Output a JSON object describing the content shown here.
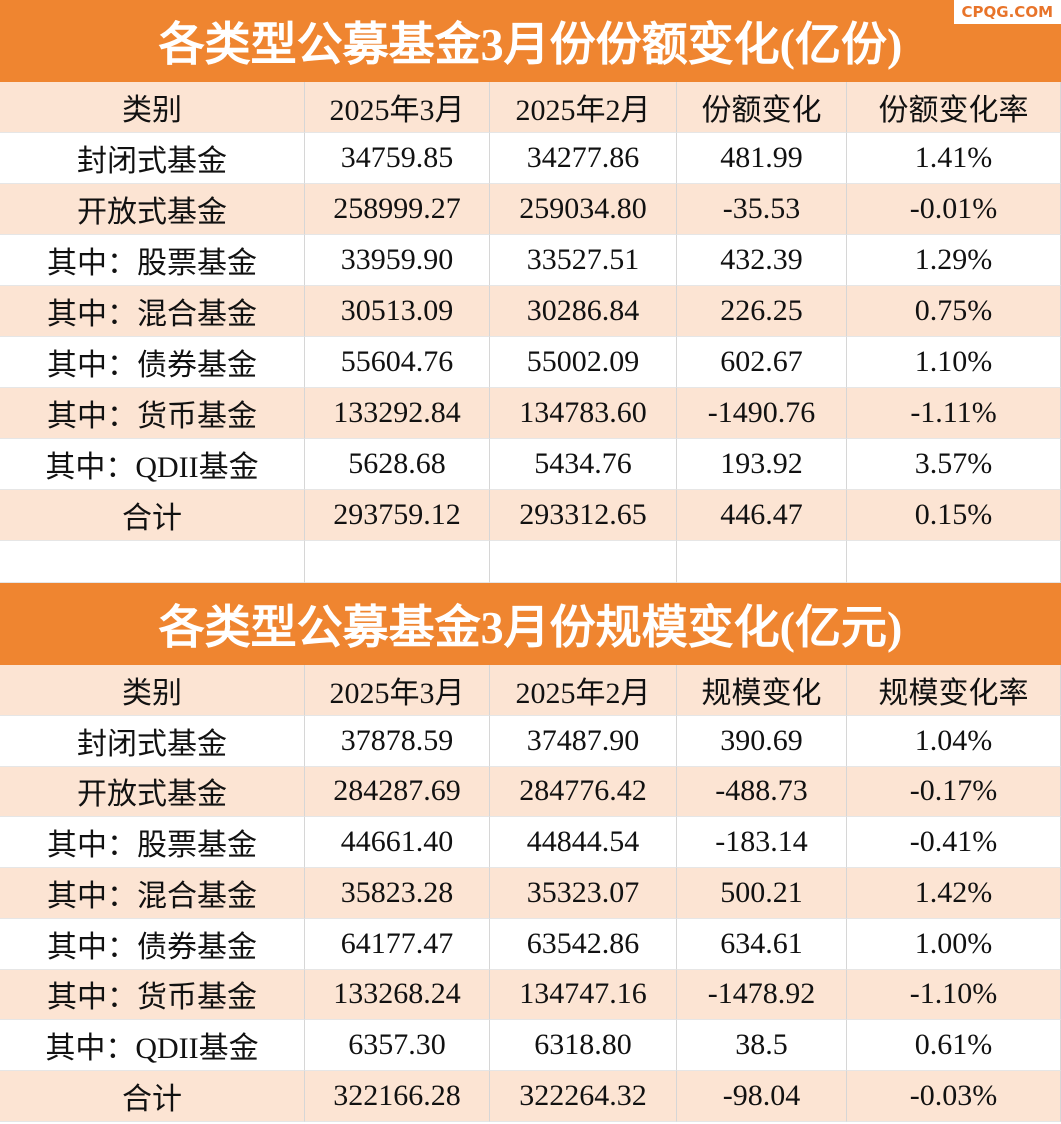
{
  "watermark": "CPQG.COM",
  "tables": [
    {
      "title": "各类型公募基金3月份份额变化(亿份)",
      "header": [
        "类别",
        "2025年3月",
        "2025年2月",
        "份额变化",
        "份额变化率"
      ],
      "rows": [
        [
          "封闭式基金",
          "34759.85",
          "34277.86",
          "481.99",
          "1.41%"
        ],
        [
          "开放式基金",
          "258999.27",
          "259034.80",
          "-35.53",
          "-0.01%"
        ],
        [
          "其中：股票基金",
          "33959.90",
          "33527.51",
          "432.39",
          "1.29%"
        ],
        [
          "其中：混合基金",
          "30513.09",
          "30286.84",
          "226.25",
          "0.75%"
        ],
        [
          "其中：债券基金",
          "55604.76",
          "55002.09",
          "602.67",
          "1.10%"
        ],
        [
          "其中：货币基金",
          "133292.84",
          "134783.60",
          "-1490.76",
          "-1.11%"
        ],
        [
          "其中：QDII基金",
          "5628.68",
          "5434.76",
          "193.92",
          "3.57%"
        ],
        [
          "合计",
          "293759.12",
          "293312.65",
          "446.47",
          "0.15%"
        ]
      ]
    },
    {
      "title": "各类型公募基金3月份规模变化(亿元)",
      "header": [
        "类别",
        "2025年3月",
        "2025年2月",
        "规模变化",
        "规模变化率"
      ],
      "rows": [
        [
          "封闭式基金",
          "37878.59",
          "37487.90",
          "390.69",
          "1.04%"
        ],
        [
          "开放式基金",
          "284287.69",
          "284776.42",
          "-488.73",
          "-0.17%"
        ],
        [
          "其中：股票基金",
          "44661.40",
          "44844.54",
          "-183.14",
          "-0.41%"
        ],
        [
          "其中：混合基金",
          "35823.28",
          "35323.07",
          "500.21",
          "1.42%"
        ],
        [
          "其中：债券基金",
          "64177.47",
          "63542.86",
          "634.61",
          "1.00%"
        ],
        [
          "其中：货币基金",
          "133268.24",
          "134747.16",
          "-1478.92",
          "-1.10%"
        ],
        [
          "其中：QDII基金",
          "6357.30",
          "6318.80",
          "38.5",
          "0.61%"
        ],
        [
          "合计",
          "322166.28",
          "322264.32",
          "-98.04",
          "-0.03%"
        ]
      ]
    }
  ]
}
